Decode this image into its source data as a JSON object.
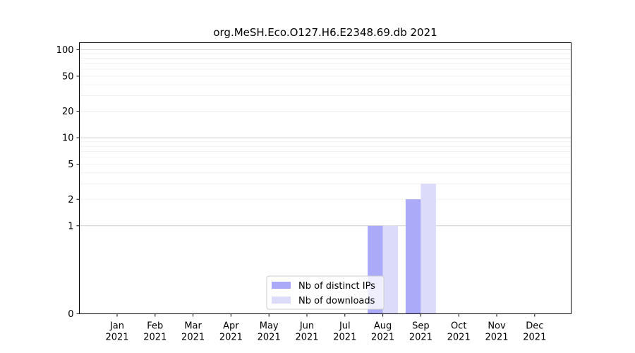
{
  "chart_data": {
    "type": "bar",
    "title": "org.MeSH.Eco.O127.H6.E2348.69.db 2021",
    "xlabel": "",
    "ylabel": "",
    "y_scale": "symlog",
    "ylim": [
      0,
      120
    ],
    "y_ticks": [
      0,
      1,
      2,
      5,
      10,
      20,
      50,
      100
    ],
    "y_tick_labels": [
      "0",
      "1",
      "2",
      "5",
      "10",
      "20",
      "50",
      "100"
    ],
    "categories": [
      [
        "Jan",
        "2021"
      ],
      [
        "Feb",
        "2021"
      ],
      [
        "Mar",
        "2021"
      ],
      [
        "Apr",
        "2021"
      ],
      [
        "May",
        "2021"
      ],
      [
        "Jun",
        "2021"
      ],
      [
        "Jul",
        "2021"
      ],
      [
        "Aug",
        "2021"
      ],
      [
        "Sep",
        "2021"
      ],
      [
        "Oct",
        "2021"
      ],
      [
        "Nov",
        "2021"
      ],
      [
        "Dec",
        "2021"
      ]
    ],
    "series": [
      {
        "name": "Nb of distinct IPs",
        "color": "#aaaaf8",
        "values": [
          0,
          0,
          0,
          0,
          0,
          0,
          0,
          1,
          2,
          0,
          0,
          0
        ]
      },
      {
        "name": "Nb of downloads",
        "color": "#dcdcfa",
        "values": [
          0,
          0,
          0,
          0,
          0,
          0,
          0,
          1,
          3,
          0,
          0,
          0
        ]
      }
    ],
    "grid": true,
    "legend_placement": "bottom-center"
  }
}
